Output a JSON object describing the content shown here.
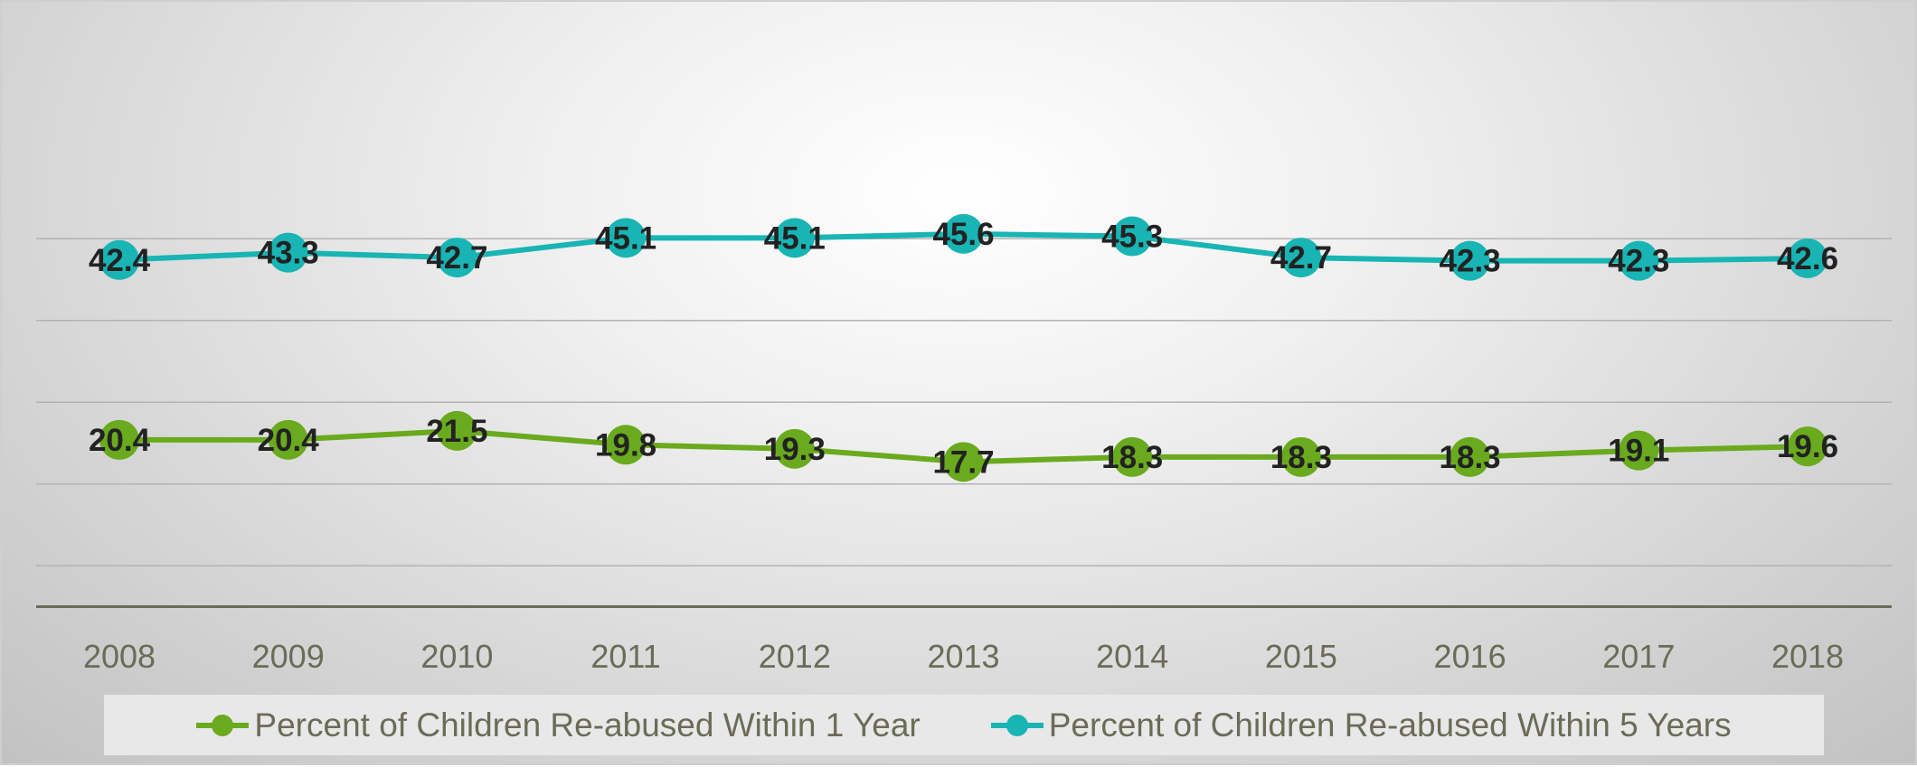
{
  "chart_data": {
    "type": "line",
    "title": "",
    "xlabel": "",
    "ylabel": "",
    "categories": [
      "2008",
      "2009",
      "2010",
      "2011",
      "2012",
      "2013",
      "2014",
      "2015",
      "2016",
      "2017",
      "2018"
    ],
    "ylim": [
      0,
      50
    ],
    "grid": true,
    "gridlines_y": [
      5,
      15,
      25,
      35,
      45
    ],
    "legend_position": "bottom",
    "series": [
      {
        "name": "Percent of Children Re-abused Within 1 Year",
        "color": "#6aaa1e",
        "values": [
          20.4,
          20.4,
          21.5,
          19.8,
          19.3,
          17.7,
          18.3,
          18.3,
          18.3,
          19.1,
          19.6
        ],
        "labels": [
          "20.4",
          "20.4",
          "21.5",
          "19.8",
          "19.3",
          "17.7",
          "18.3",
          "18.3",
          "18.3",
          "19.1",
          "19.6"
        ]
      },
      {
        "name": "Percent of Children Re-abused Within 5 Years",
        "color": "#19b4b4",
        "values": [
          42.4,
          43.3,
          42.7,
          45.1,
          45.1,
          45.6,
          45.3,
          42.7,
          42.3,
          42.3,
          42.6
        ],
        "labels": [
          "42.4",
          "43.3",
          "42.7",
          "45.1",
          "45.1",
          "45.6",
          "45.3",
          "42.7",
          "42.3",
          "42.3",
          "42.6"
        ]
      }
    ]
  },
  "icons": {
    "legend_marker": "line-with-circle-marker"
  }
}
